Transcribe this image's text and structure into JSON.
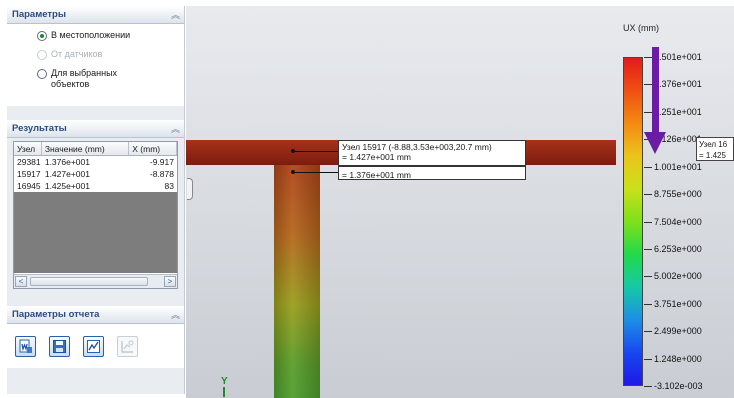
{
  "params": {
    "title": "Параметры",
    "options": [
      {
        "label": "В местоположении",
        "state": "selected"
      },
      {
        "label": "От датчиков",
        "state": "disabled"
      },
      {
        "label": "Для выбранных объектов",
        "state": "unselected"
      }
    ]
  },
  "results": {
    "title": "Результаты",
    "columns": [
      "Узел",
      "Значение (mm)",
      "X (mm)"
    ],
    "rows": [
      [
        "29381",
        "1.376e+001",
        "-9.917"
      ],
      [
        "15917",
        "1.427e+001",
        "-8.878"
      ],
      [
        "16945",
        "1.425e+001",
        "83"
      ]
    ],
    "scroll_left": "<",
    "scroll_right": ">"
  },
  "report": {
    "title": "Параметры отчета",
    "icons": [
      "report-word-icon",
      "report-save-icon",
      "report-chart-icon",
      "report-graph-disabled-icon"
    ]
  },
  "viewport": {
    "callout_main": [
      "Узел 15917 (-8.88,3.53e+003,20.7 mm)",
      "= 1.427e+001 mm"
    ],
    "callout_second": "= 1.376e+001 mm",
    "axis_label": "Y",
    "edge_callout": [
      "Узел 16",
      "= 1.425"
    ]
  },
  "legend": {
    "title": "UX (mm)",
    "labels": [
      "1.501e+001",
      "1.376e+001",
      "1.251e+001",
      "1.126e+001",
      "1.001e+001",
      "8.755e+000",
      "7.504e+000",
      "6.253e+000",
      "5.002e+000",
      "3.751e+000",
      "2.499e+000",
      "1.248e+000",
      "-3.102e-003"
    ],
    "colors": {
      "max": "#e31b1b",
      "mid": "#22d94a",
      "min": "#1e18e8",
      "probe_arrow": "#6b1ca5"
    }
  }
}
